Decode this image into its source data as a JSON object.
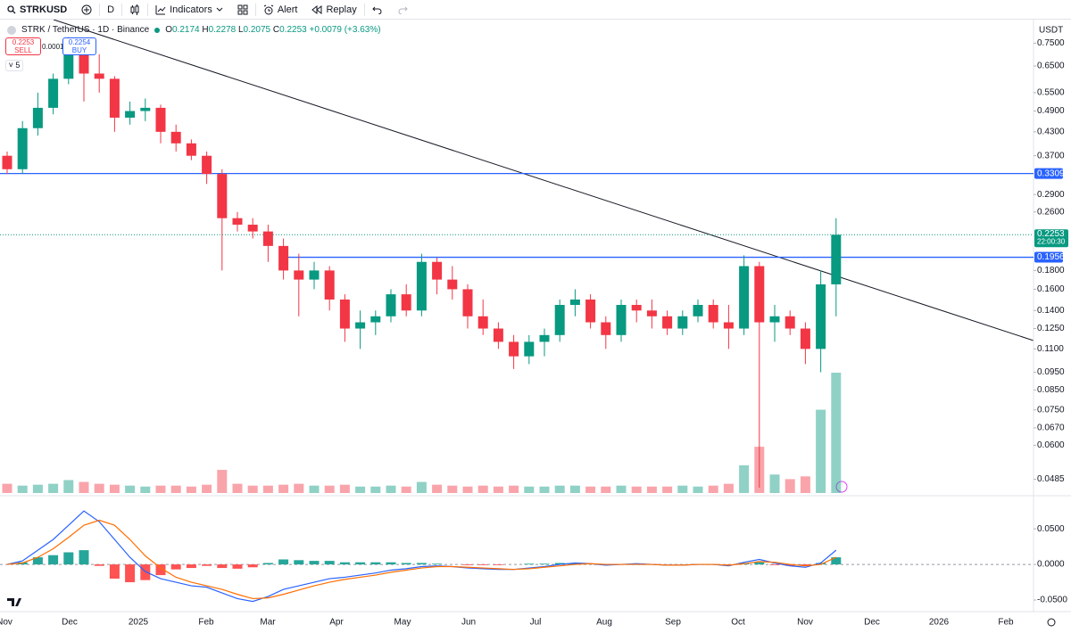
{
  "toolbar": {
    "symbol": "STRKUSD",
    "interval": "D",
    "indicators": "Indicators",
    "alert": "Alert",
    "replay": "Replay"
  },
  "legend": {
    "title": "STRK / TetherUS · 1D · Binance",
    "open": 0.2174,
    "high": 0.2278,
    "low": 0.2075,
    "close": 0.2253,
    "change": "+0.0079",
    "change_pct": "(+3.63%)",
    "indicator_count": 5
  },
  "order_panel": {
    "sell_price": 0.2253,
    "sell": "SELL",
    "spread": 0.0001,
    "buy_price": 0.2254,
    "buy": "BUY"
  },
  "chart_data": [
    {
      "type": "candlestick",
      "currency": "USDT",
      "log_scale": true,
      "up_color": "#089981",
      "down_color": "#f23645",
      "ylim": [
        0.044,
        0.87
      ],
      "yticks": [
        {
          "value": 0.75,
          "label": "0.7500"
        },
        {
          "value": 0.65,
          "label": "0.6500"
        },
        {
          "value": 0.55,
          "label": "0.5500"
        },
        {
          "value": 0.49,
          "label": "0.4900"
        },
        {
          "value": 0.43,
          "label": "0.4300"
        },
        {
          "value": 0.37,
          "label": "0.3700"
        },
        {
          "value": 0.29,
          "label": "0.2900"
        },
        {
          "value": 0.26,
          "label": "0.2600"
        },
        {
          "value": 0.18,
          "label": "0.1800"
        },
        {
          "value": 0.16,
          "label": "0.1600"
        },
        {
          "value": 0.14,
          "label": "0.1400"
        },
        {
          "value": 0.125,
          "label": "0.1250"
        },
        {
          "value": 0.11,
          "label": "0.1100"
        },
        {
          "value": 0.095,
          "label": "0.0950"
        },
        {
          "value": 0.085,
          "label": "0.0850"
        },
        {
          "value": 0.075,
          "label": "0.0750"
        },
        {
          "value": 0.067,
          "label": "0.0670"
        },
        {
          "value": 0.06,
          "label": "0.0600"
        },
        {
          "value": 0.0485,
          "label": "0.0485"
        }
      ],
      "time_labels": [
        "Nov",
        "Dec",
        "2025",
        "Feb",
        "Mar",
        "Apr",
        "May",
        "Jun",
        "Jul",
        "Aug",
        "Sep",
        "Oct",
        "Nov",
        "Dec",
        "2026",
        "Feb"
      ],
      "levels": [
        {
          "value": 0.3309,
          "label": "0.3309",
          "color": "#2962ff"
        },
        {
          "value": 0.1956,
          "label": "0.1956",
          "color": "#2962ff"
        }
      ],
      "last_price": {
        "value": 0.2253,
        "label": "0.2253",
        "countdown": "22:00:30",
        "color": "#089981"
      },
      "open": [
        0.37,
        0.34,
        0.44,
        0.5,
        0.6,
        0.7,
        0.62,
        0.6,
        0.47,
        0.49,
        0.5,
        0.43,
        0.4,
        0.37,
        0.33,
        0.25,
        0.24,
        0.23,
        0.21,
        0.18,
        0.17,
        0.18,
        0.15,
        0.125,
        0.13,
        0.135,
        0.155,
        0.14,
        0.19,
        0.17,
        0.16,
        0.135,
        0.125,
        0.115,
        0.105,
        0.115,
        0.12,
        0.145,
        0.15,
        0.13,
        0.12,
        0.145,
        0.14,
        0.135,
        0.125,
        0.135,
        0.145,
        0.13,
        0.125,
        0.185,
        0.13,
        0.135,
        0.125,
        0.11,
        0.165
      ],
      "high": [
        0.38,
        0.46,
        0.55,
        0.62,
        0.78,
        0.72,
        0.7,
        0.61,
        0.52,
        0.53,
        0.51,
        0.45,
        0.41,
        0.38,
        0.34,
        0.26,
        0.25,
        0.24,
        0.22,
        0.2,
        0.19,
        0.185,
        0.155,
        0.14,
        0.14,
        0.16,
        0.165,
        0.2,
        0.195,
        0.185,
        0.165,
        0.15,
        0.13,
        0.12,
        0.12,
        0.125,
        0.15,
        0.16,
        0.155,
        0.135,
        0.15,
        0.15,
        0.15,
        0.14,
        0.14,
        0.15,
        0.15,
        0.145,
        0.198,
        0.19,
        0.145,
        0.14,
        0.13,
        0.18,
        0.25
      ],
      "low": [
        0.33,
        0.33,
        0.42,
        0.48,
        0.58,
        0.52,
        0.55,
        0.43,
        0.45,
        0.46,
        0.4,
        0.38,
        0.36,
        0.31,
        0.18,
        0.23,
        0.22,
        0.19,
        0.17,
        0.135,
        0.16,
        0.14,
        0.115,
        0.11,
        0.12,
        0.13,
        0.135,
        0.135,
        0.155,
        0.15,
        0.125,
        0.12,
        0.11,
        0.097,
        0.1,
        0.105,
        0.115,
        0.135,
        0.125,
        0.11,
        0.115,
        0.13,
        0.125,
        0.12,
        0.12,
        0.13,
        0.125,
        0.11,
        0.12,
        0.046,
        0.115,
        0.12,
        0.1,
        0.095,
        0.135
      ],
      "close": [
        0.34,
        0.44,
        0.5,
        0.6,
        0.7,
        0.62,
        0.6,
        0.47,
        0.49,
        0.5,
        0.43,
        0.4,
        0.37,
        0.33,
        0.25,
        0.24,
        0.23,
        0.21,
        0.18,
        0.17,
        0.18,
        0.15,
        0.125,
        0.13,
        0.135,
        0.155,
        0.14,
        0.19,
        0.17,
        0.16,
        0.135,
        0.125,
        0.115,
        0.105,
        0.115,
        0.12,
        0.145,
        0.15,
        0.13,
        0.12,
        0.145,
        0.14,
        0.135,
        0.125,
        0.135,
        0.145,
        0.13,
        0.125,
        0.185,
        0.13,
        0.135,
        0.125,
        0.11,
        0.165,
        0.2253
      ],
      "volume": [
        10,
        8,
        9,
        10,
        14,
        12,
        10,
        9,
        8,
        7,
        8,
        8,
        7,
        9,
        25,
        10,
        8,
        8,
        9,
        10,
        8,
        8,
        9,
        7,
        7,
        8,
        7,
        12,
        9,
        8,
        7,
        8,
        7,
        8,
        7,
        7,
        8,
        8,
        7,
        7,
        8,
        7,
        7,
        7,
        8,
        7,
        8,
        10,
        30,
        50,
        20,
        15,
        18,
        90,
        130
      ]
    },
    {
      "type": "macd",
      "ylim": [
        -0.065,
        0.094
      ],
      "yticks": [
        {
          "value": 0.05,
          "label": "0.0500"
        },
        {
          "value": 0,
          "label": "0.0000"
        },
        {
          "value": -0.05,
          "label": "-0.0500"
        }
      ],
      "series": [
        {
          "name": "MACD",
          "color": "#2962ff",
          "values": [
            0,
            0.005,
            0.02,
            0.035,
            0.055,
            0.075,
            0.06,
            0.035,
            0.01,
            -0.01,
            -0.02,
            -0.025,
            -0.03,
            -0.032,
            -0.04,
            -0.048,
            -0.052,
            -0.045,
            -0.035,
            -0.03,
            -0.025,
            -0.02,
            -0.018,
            -0.015,
            -0.012,
            -0.008,
            -0.006,
            -0.003,
            -0.002,
            -0.003,
            -0.005,
            -0.006,
            -0.007,
            -0.007,
            -0.005,
            -0.003,
            0,
            0.002,
            0.001,
            -0.001,
            0,
            0.001,
            0,
            -0.001,
            -0.001,
            0,
            0,
            -0.002,
            0.003,
            0.007,
            0.002,
            -0.002,
            -0.004,
            0.002,
            0.02
          ]
        },
        {
          "name": "Signal",
          "color": "#ff6d00",
          "values": [
            0,
            0.002,
            0.01,
            0.022,
            0.038,
            0.055,
            0.062,
            0.055,
            0.035,
            0.012,
            -0.005,
            -0.018,
            -0.025,
            -0.03,
            -0.035,
            -0.042,
            -0.048,
            -0.047,
            -0.042,
            -0.036,
            -0.03,
            -0.025,
            -0.021,
            -0.018,
            -0.015,
            -0.011,
            -0.008,
            -0.005,
            -0.003,
            -0.003,
            -0.004,
            -0.005,
            -0.006,
            -0.007,
            -0.006,
            -0.004,
            -0.002,
            0,
            0.001,
            0,
            0,
            0,
            0,
            -0.001,
            -0.001,
            0,
            0,
            -0.001,
            0.001,
            0.004,
            0.003,
            0,
            -0.002,
            0,
            0.01
          ]
        }
      ],
      "histogram": [
        0,
        0.003,
        0.01,
        0.013,
        0.017,
        0.02,
        -0.002,
        -0.02,
        -0.025,
        -0.022,
        -0.015,
        -0.007,
        -0.005,
        -0.002,
        -0.005,
        -0.006,
        -0.004,
        0.002,
        0.007,
        0.006,
        0.005,
        0.005,
        0.003,
        0.003,
        0.003,
        0.003,
        0.002,
        0.002,
        0.001,
        0,
        -0.001,
        -0.001,
        -0.001,
        0,
        0.001,
        0.001,
        0.002,
        0.002,
        0,
        -0.001,
        0,
        0.001,
        0,
        0,
        0,
        0,
        0,
        -0.001,
        0.002,
        0.003,
        -0.001,
        -0.002,
        -0.002,
        0.002,
        0.01
      ]
    }
  ]
}
